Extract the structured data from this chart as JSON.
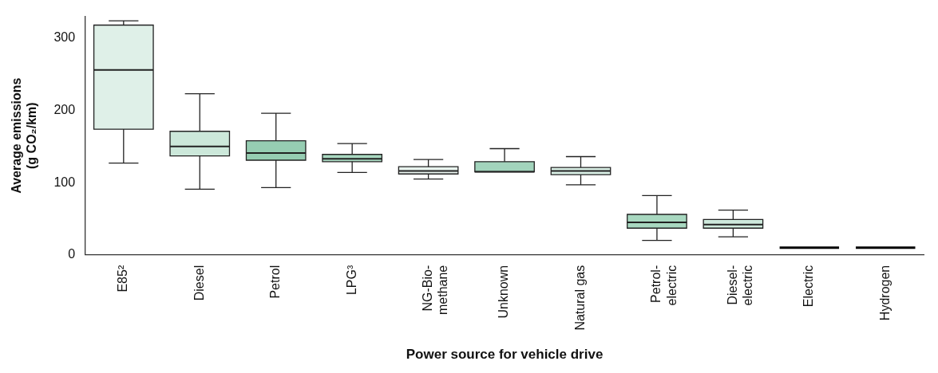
{
  "chart_data": {
    "type": "box",
    "xlabel": "Power source for vehicle drive",
    "ylabel": "Average emissions (g CO₂/km)",
    "categories": [
      "E85²",
      "Diesel",
      "Petrol",
      "LPG³",
      "NG-Bio-methane",
      "Unknown",
      "Natural gas",
      "Petrol-electric",
      "Diesel-electric",
      "Electric",
      "Hydrogen"
    ],
    "boxes": [
      {
        "low": 127,
        "q1": 174,
        "median": 256,
        "q3": 318,
        "high": 324
      },
      {
        "low": 91,
        "q1": 137,
        "median": 150,
        "q3": 171,
        "high": 223
      },
      {
        "low": 93,
        "q1": 131,
        "median": 141,
        "q3": 158,
        "high": 196
      },
      {
        "low": 114,
        "q1": 129,
        "median": 133,
        "q3": 139,
        "high": 154
      },
      {
        "low": 105,
        "q1": 112,
        "median": 116,
        "q3": 122,
        "high": 132
      },
      {
        "low": 115,
        "q1": 115,
        "median": 115,
        "q3": 129,
        "high": 147
      },
      {
        "low": 97,
        "q1": 111,
        "median": 116,
        "q3": 121,
        "high": 136
      },
      {
        "low": 20,
        "q1": 37,
        "median": 45,
        "q3": 56,
        "high": 82
      },
      {
        "low": 25,
        "q1": 37,
        "median": 42,
        "q3": 49,
        "high": 62
      },
      {
        "low": 10,
        "q1": 10,
        "median": 10,
        "q3": 10,
        "high": 10
      },
      {
        "low": 10,
        "q1": 10,
        "median": 10,
        "q3": 10,
        "high": 10
      }
    ],
    "colors": [
      "#dff0e8",
      "#cce8da",
      "#96cdb2",
      "#a8d8c0",
      "#e8f3ee",
      "#a2d4bc",
      "#d9efe5",
      "#a8d8c0",
      "#cfeadd",
      "#000000",
      "#000000"
    ],
    "ylim": [
      0,
      330
    ],
    "yticks": [
      0,
      100,
      200,
      300
    ],
    "grid": false,
    "legend": false
  }
}
